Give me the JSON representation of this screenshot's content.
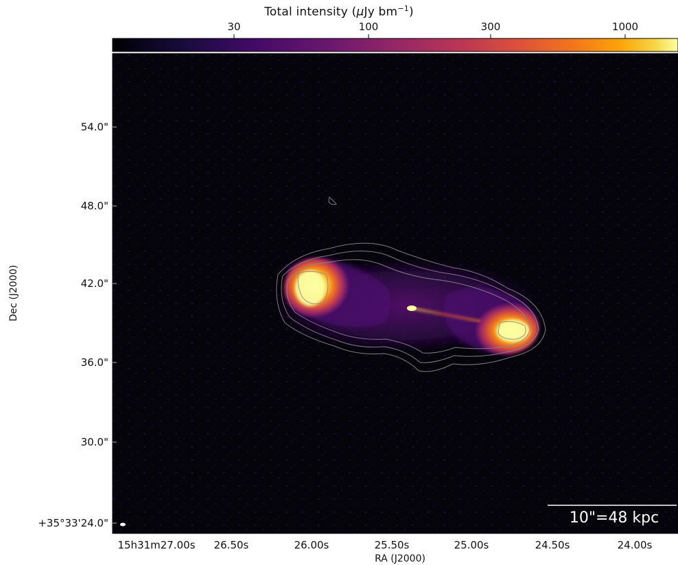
{
  "colorbar": {
    "title_prefix": "Total intensity (",
    "title_mu": "μ",
    "title_unit": "Jy bm",
    "title_exp": "−1",
    "title_suffix": ")",
    "ticks": [
      "30",
      "100",
      "300",
      "1000"
    ],
    "colormap": "inferno"
  },
  "axes": {
    "xlabel": "RA (J2000)",
    "ylabel": "Dec (J2000)",
    "ra_ticks": [
      "15h31m27.00s",
      "26.50s",
      "26.00s",
      "25.50s",
      "25.00s",
      "24.50s",
      "24.00s"
    ],
    "dec_ticks": [
      "54.0\"",
      "48.0\"",
      "42.0\"",
      "36.0\"",
      "30.0\"",
      "+35°33'24.0\""
    ]
  },
  "scale_bar": {
    "label": "10\"=48 kpc"
  },
  "colors": {
    "background": "#05040a",
    "contour": "#8a8a8a",
    "scale_bar": "#ffffff"
  }
}
